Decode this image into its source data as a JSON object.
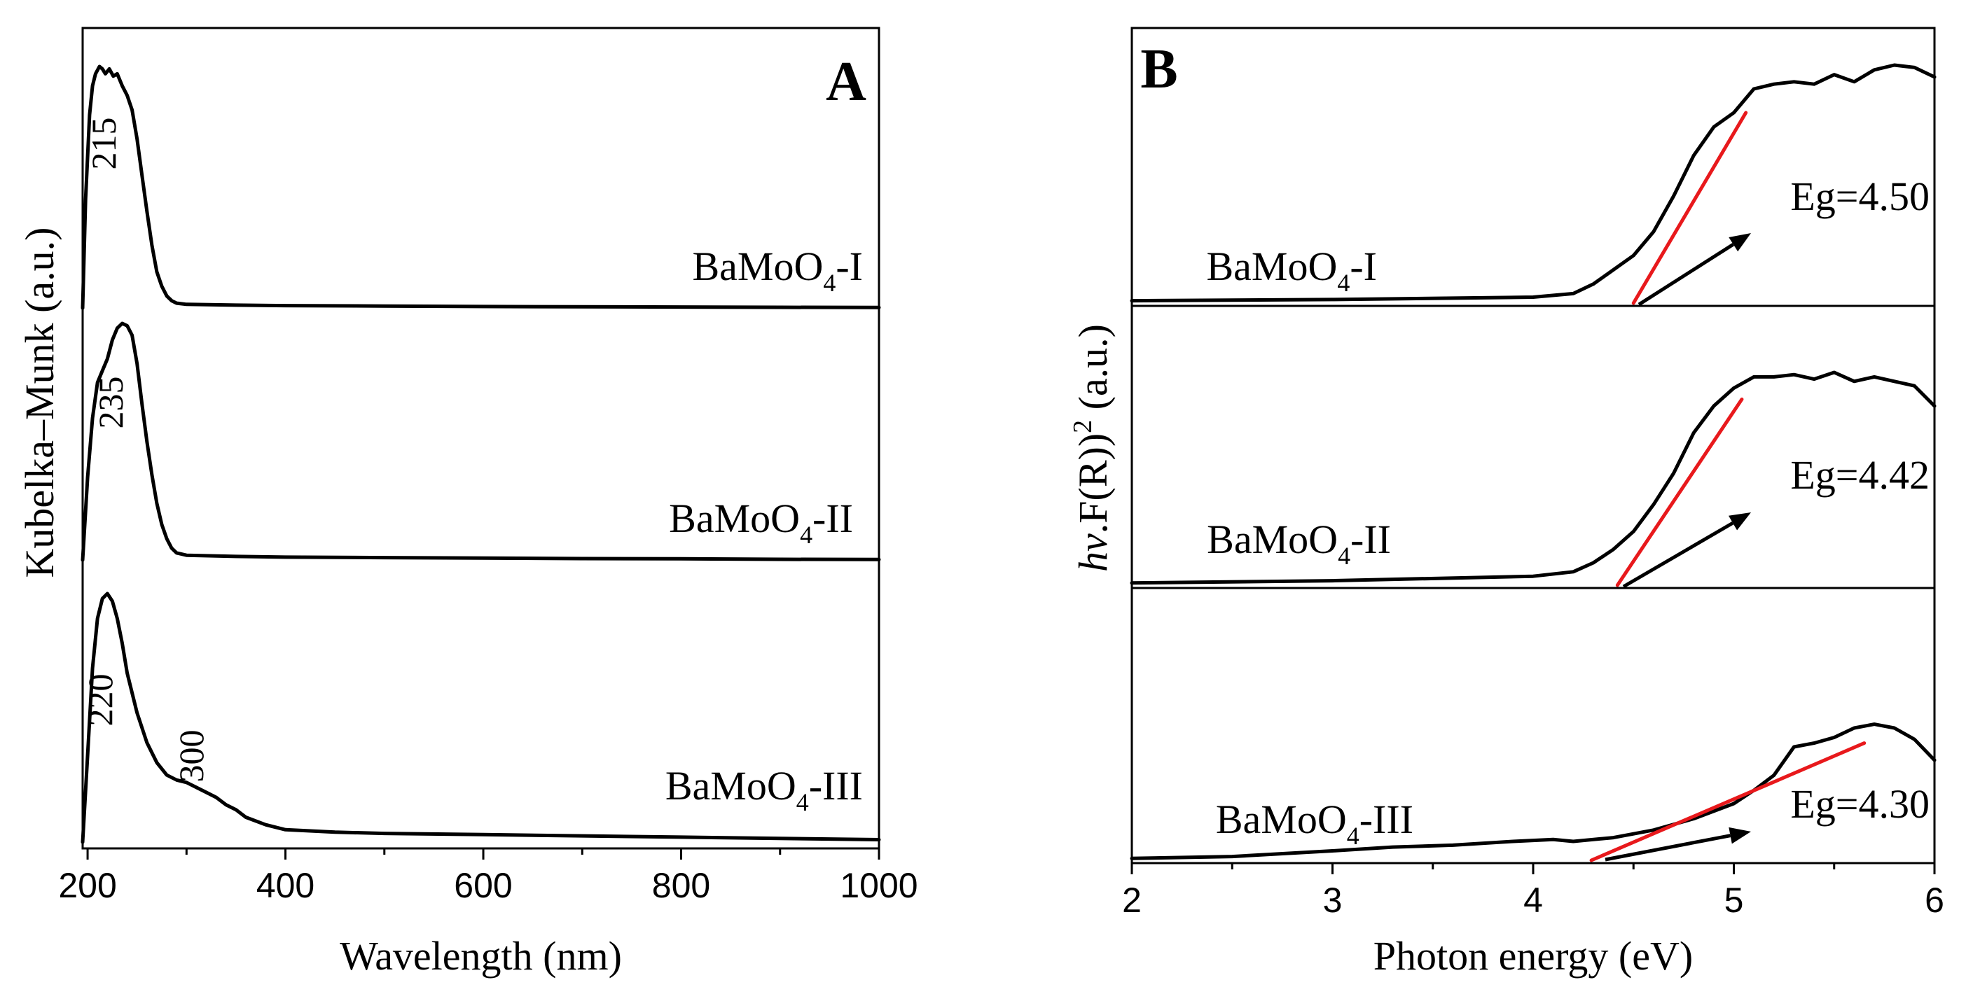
{
  "chart_data": [
    {
      "type": "line",
      "panel_label": "A",
      "xlabel": "Wavelength (nm)",
      "ylabel": "Kubelka–Munk (a.u.)",
      "xlim": [
        195,
        1000
      ],
      "xticks": [
        200,
        400,
        600,
        800,
        1000
      ],
      "xtick_labels": [
        "200",
        "400",
        "600",
        "800",
        "1000"
      ],
      "layout": "stacked offset traces, top to bottom",
      "series": [
        {
          "label_main": "BaMoO",
          "label_sub": "4",
          "label_suffix": "-I",
          "peak_labels": [
            "215"
          ],
          "x": [
            195,
            198,
            202,
            205,
            208,
            212,
            215,
            218,
            222,
            226,
            230,
            235,
            240,
            245,
            250,
            255,
            260,
            265,
            270,
            275,
            280,
            285,
            290,
            300,
            350,
            400,
            500,
            600,
            700,
            800,
            900,
            1000
          ],
          "y": [
            0.0,
            0.45,
            0.8,
            0.92,
            0.97,
            1.0,
            0.99,
            0.97,
            0.99,
            0.96,
            0.97,
            0.92,
            0.88,
            0.82,
            0.7,
            0.55,
            0.4,
            0.26,
            0.15,
            0.09,
            0.05,
            0.03,
            0.02,
            0.015,
            0.012,
            0.01,
            0.008,
            0.006,
            0.005,
            0.004,
            0.003,
            0.002
          ]
        },
        {
          "label_main": "BaMoO",
          "label_sub": "4",
          "label_suffix": "-II",
          "peak_labels": [
            "235"
          ],
          "x": [
            195,
            200,
            205,
            210,
            215,
            220,
            225,
            230,
            235,
            240,
            245,
            250,
            255,
            260,
            265,
            270,
            275,
            280,
            285,
            290,
            300,
            350,
            400,
            500,
            600,
            700,
            800,
            900,
            1000
          ],
          "y": [
            0.0,
            0.35,
            0.6,
            0.75,
            0.8,
            0.85,
            0.93,
            0.98,
            1.0,
            0.99,
            0.95,
            0.83,
            0.66,
            0.5,
            0.36,
            0.24,
            0.15,
            0.09,
            0.05,
            0.03,
            0.02,
            0.015,
            0.012,
            0.01,
            0.008,
            0.006,
            0.005,
            0.003,
            0.002
          ]
        },
        {
          "label_main": "BaMoO",
          "label_sub": "4",
          "label_suffix": "-III",
          "peak_labels": [
            "220",
            "300"
          ],
          "x": [
            195,
            200,
            205,
            210,
            215,
            220,
            225,
            230,
            235,
            240,
            250,
            260,
            270,
            280,
            290,
            300,
            310,
            320,
            330,
            340,
            350,
            360,
            380,
            400,
            450,
            500,
            600,
            700,
            800,
            900,
            1000
          ],
          "y": [
            0.0,
            0.35,
            0.7,
            0.9,
            0.98,
            1.0,
            0.97,
            0.9,
            0.8,
            0.68,
            0.52,
            0.4,
            0.32,
            0.27,
            0.25,
            0.24,
            0.22,
            0.2,
            0.18,
            0.15,
            0.13,
            0.1,
            0.07,
            0.05,
            0.04,
            0.035,
            0.03,
            0.025,
            0.02,
            0.015,
            0.01
          ]
        }
      ]
    },
    {
      "type": "line",
      "panel_label": "B",
      "xlabel": "Photon energy (eV)",
      "ylabel_italic": "hv",
      "ylabel_main": ".F(R))",
      "ylabel_sup": "2",
      "ylabel_suffix": " (a.u.)",
      "xlim": [
        2,
        6
      ],
      "xticks": [
        2,
        3,
        4,
        5,
        6
      ],
      "xtick_labels": [
        "2",
        "3",
        "4",
        "5",
        "6"
      ],
      "layout": "three stacked sub-panels, top to bottom",
      "series": [
        {
          "label_main": "BaMoO",
          "label_sub": "4",
          "label_suffix": "-I",
          "eg_label": "Eg=4.50",
          "eg": 4.5,
          "fit_line": {
            "x": [
              4.5,
              5.06
            ],
            "y": [
              0.0,
              0.8
            ]
          },
          "x": [
            2.0,
            3.0,
            4.0,
            4.2,
            4.3,
            4.4,
            4.5,
            4.6,
            4.7,
            4.8,
            4.9,
            5.0,
            5.1,
            5.2,
            5.3,
            5.4,
            5.5,
            5.6,
            5.7,
            5.8,
            5.9,
            6.0
          ],
          "y": [
            0.01,
            0.015,
            0.025,
            0.04,
            0.08,
            0.14,
            0.2,
            0.3,
            0.45,
            0.62,
            0.74,
            0.8,
            0.9,
            0.92,
            0.93,
            0.92,
            0.96,
            0.93,
            0.98,
            1.0,
            0.99,
            0.95
          ]
        },
        {
          "label_main": "BaMoO",
          "label_sub": "4",
          "label_suffix": "-II",
          "eg_label": "Eg=4.42",
          "eg": 4.42,
          "fit_line": {
            "x": [
              4.42,
              5.04
            ],
            "y": [
              0.0,
              0.83
            ]
          },
          "x": [
            2.0,
            3.0,
            4.0,
            4.2,
            4.3,
            4.4,
            4.5,
            4.6,
            4.7,
            4.8,
            4.9,
            5.0,
            5.1,
            5.2,
            5.3,
            5.4,
            5.5,
            5.6,
            5.7,
            5.8,
            5.9,
            6.0
          ],
          "y": [
            0.01,
            0.02,
            0.04,
            0.06,
            0.1,
            0.16,
            0.24,
            0.36,
            0.5,
            0.68,
            0.8,
            0.88,
            0.93,
            0.93,
            0.94,
            0.92,
            0.95,
            0.91,
            0.93,
            0.91,
            0.89,
            0.8
          ]
        },
        {
          "label_main": "BaMoO",
          "label_sub": "4",
          "label_suffix": "-III",
          "eg_label": "Eg=4.30",
          "eg": 4.3,
          "fit_line": {
            "x": [
              4.29,
              5.65
            ],
            "y": [
              0.0,
              0.62
            ]
          },
          "x": [
            2.0,
            2.5,
            3.0,
            3.3,
            3.6,
            3.9,
            4.1,
            4.2,
            4.4,
            4.6,
            4.8,
            5.0,
            5.1,
            5.2,
            5.3,
            5.4,
            5.5,
            5.6,
            5.7,
            5.8,
            5.9,
            6.0
          ],
          "y": [
            0.01,
            0.02,
            0.05,
            0.07,
            0.08,
            0.1,
            0.11,
            0.1,
            0.12,
            0.16,
            0.22,
            0.3,
            0.37,
            0.45,
            0.6,
            0.62,
            0.65,
            0.7,
            0.72,
            0.7,
            0.64,
            0.53
          ]
        }
      ]
    }
  ]
}
